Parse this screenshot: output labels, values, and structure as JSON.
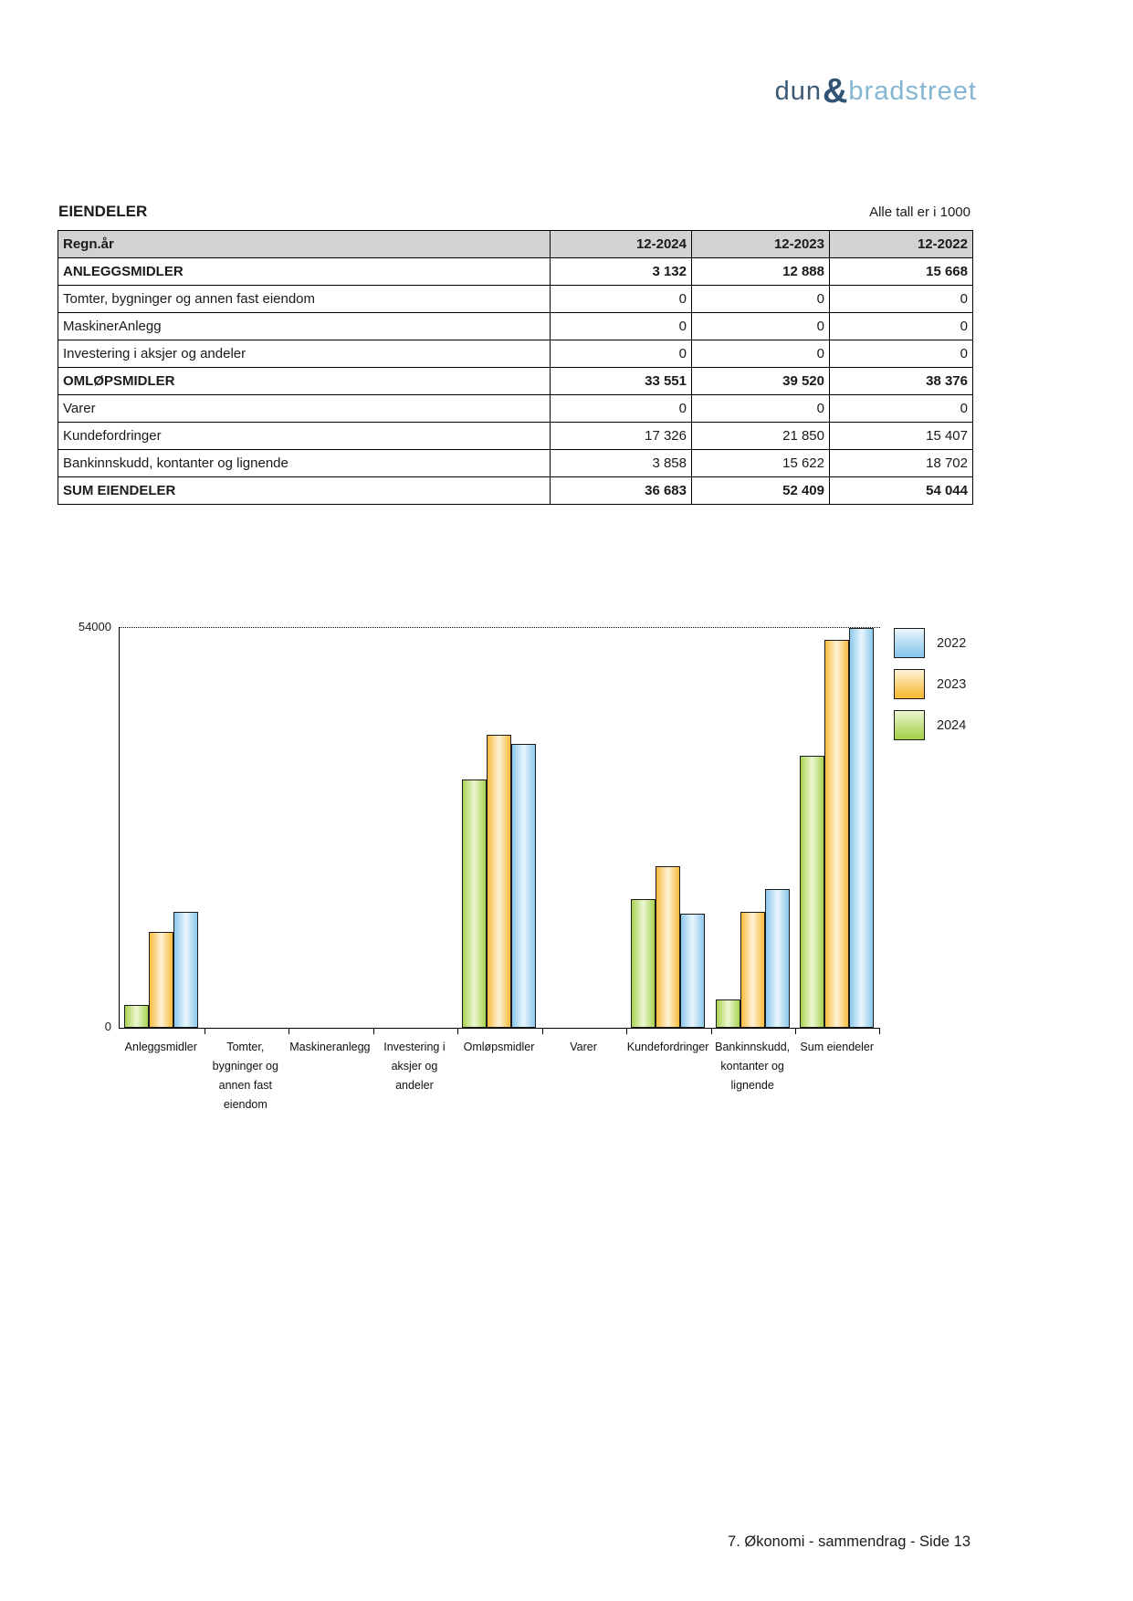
{
  "logo": {
    "part1": "dun",
    "amp": "&",
    "part2": "bradstreet"
  },
  "section": {
    "title": "EIENDELER",
    "unit_note": "Alle tall er i 1000"
  },
  "table": {
    "header": {
      "label": "Regn.år",
      "cols": [
        "12-2024",
        "12-2023",
        "12-2022"
      ]
    },
    "rows": [
      {
        "label": "ANLEGGSMIDLER",
        "bold": true,
        "values": [
          "3 132",
          "12 888",
          "15 668"
        ]
      },
      {
        "label": "Tomter, bygninger og annen fast eiendom",
        "bold": false,
        "values": [
          "0",
          "0",
          "0"
        ]
      },
      {
        "label": "MaskinerAnlegg",
        "bold": false,
        "values": [
          "0",
          "0",
          "0"
        ]
      },
      {
        "label": "Investering i aksjer og andeler",
        "bold": false,
        "values": [
          "0",
          "0",
          "0"
        ]
      },
      {
        "label": "OMLØPSMIDLER",
        "bold": true,
        "values": [
          "33 551",
          "39 520",
          "38 376"
        ]
      },
      {
        "label": "Varer",
        "bold": false,
        "values": [
          "0",
          "0",
          "0"
        ]
      },
      {
        "label": "Kundefordringer",
        "bold": false,
        "values": [
          "17 326",
          "21 850",
          "15 407"
        ]
      },
      {
        "label": "Bankinnskudd, kontanter og lignende",
        "bold": false,
        "values": [
          "3 858",
          "15 622",
          "18 702"
        ]
      },
      {
        "label": "SUM EIENDELER",
        "bold": true,
        "values": [
          "36 683",
          "52 409",
          "54 044"
        ]
      }
    ]
  },
  "chart_data": {
    "type": "bar",
    "title": "",
    "xlabel": "",
    "ylabel": "",
    "ylim": [
      0,
      54000
    ],
    "ymax_label": "54000",
    "ymin_label": "0",
    "grid": "single dotted reference line at y=54000",
    "legend_position": "top-right",
    "categories": [
      [
        "Anleggsmidler"
      ],
      [
        "Tomter,",
        "bygninger og",
        "annen fast",
        "eiendom"
      ],
      [
        "Maskineranlegg"
      ],
      [
        "Investering i",
        "aksjer og",
        "andeler"
      ],
      [
        "Omløpsmidler"
      ],
      [
        "Varer"
      ],
      [
        "Kundefordringer"
      ],
      [
        "Bankinnskudd,",
        "kontanter og",
        "lignende"
      ],
      [
        "Sum eiendeler"
      ]
    ],
    "series": [
      {
        "name": "2024",
        "color_edge": "#a8d250",
        "color_light": "#edf7d3",
        "values": [
          3132,
          0,
          0,
          0,
          33551,
          0,
          17326,
          3858,
          36683
        ]
      },
      {
        "name": "2023",
        "color_edge": "#f7bc3c",
        "color_light": "#fdf2d8",
        "values": [
          12888,
          0,
          0,
          0,
          39520,
          0,
          21850,
          15622,
          52409
        ]
      },
      {
        "name": "2022",
        "color_edge": "#8cc8eb",
        "color_light": "#eaf6fd",
        "values": [
          15668,
          0,
          0,
          0,
          38376,
          0,
          15407,
          18702,
          54044
        ]
      }
    ],
    "legend": [
      "2022",
      "2023",
      "2024"
    ]
  },
  "footer": {
    "text": "7. Økonomi - sammendrag - Side 13"
  }
}
